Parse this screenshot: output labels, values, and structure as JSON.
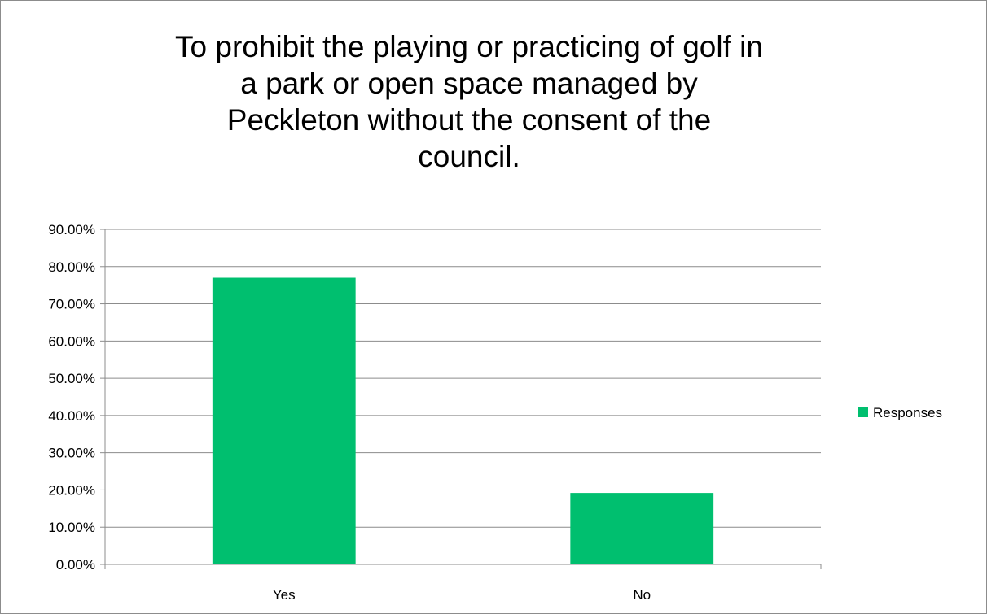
{
  "chart_data": {
    "type": "bar",
    "title": "To prohibit the playing or practicing of golf in\na park or open space managed by\nPeckleton without the consent of the\ncouncil.",
    "categories": [
      "Yes",
      "No"
    ],
    "series": [
      {
        "name": "Responses",
        "values": [
          0.77,
          0.192
        ],
        "color": "#00bf6f"
      }
    ],
    "ylim": [
      0,
      0.9
    ],
    "yticks": [
      0,
      0.1,
      0.2,
      0.3,
      0.4,
      0.5,
      0.6,
      0.7,
      0.8,
      0.9
    ],
    "ytick_labels": [
      "0.00%",
      "10.00%",
      "20.00%",
      "30.00%",
      "40.00%",
      "50.00%",
      "60.00%",
      "70.00%",
      "80.00%",
      "90.00%"
    ],
    "grid": true,
    "legend_position": "right"
  }
}
